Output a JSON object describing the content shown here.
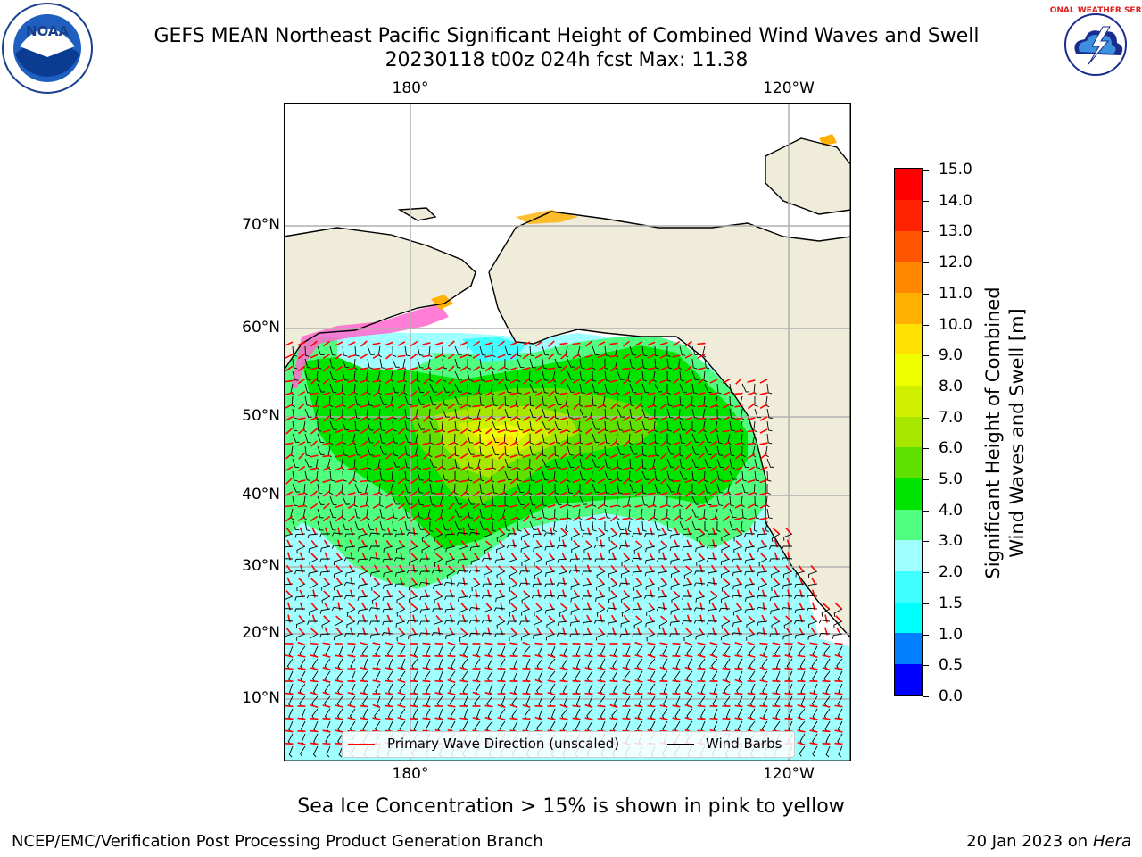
{
  "title": {
    "line1": "GEFS MEAN Northeast Pacific Significant Height of Combined Wind Waves and Swell",
    "line2": "20230118 t00z 024h fcst   Max: 11.38"
  },
  "logos": {
    "left": {
      "icon": "noaa-logo-icon",
      "text": "NOAA"
    },
    "right": {
      "icon": "nws-logo-icon",
      "text": "NATIONAL WEATHER SERVICE"
    }
  },
  "axes": {
    "lon_top": [
      "180°",
      "120°W"
    ],
    "lon_bottom": [
      "180°",
      "120°W"
    ],
    "lat": [
      "70°N",
      "60°N",
      "50°N",
      "40°N",
      "30°N",
      "20°N",
      "10°N"
    ]
  },
  "legend": {
    "wave_direction": "Primary Wave Direction (unscaled)",
    "wind_barbs": "Wind Barbs",
    "wave_color": "#ff0000",
    "barb_color": "#000000"
  },
  "colorbar": {
    "title_line1": "Significant Height of Combined",
    "title_line2": "Wind Waves and Swell [m]",
    "ticks": [
      "0.0",
      "0.5",
      "1.0",
      "1.5",
      "2.0",
      "3.0",
      "4.0",
      "5.0",
      "6.0",
      "7.0",
      "8.0",
      "9.0",
      "10.0",
      "11.0",
      "12.0",
      "13.0",
      "14.0",
      "15.0"
    ],
    "colors": [
      "#0000ff",
      "#0080ff",
      "#00ffff",
      "#40ffff",
      "#a0ffff",
      "#50ff80",
      "#00e400",
      "#60e000",
      "#a8e800",
      "#d0f000",
      "#f0ff00",
      "#ffe000",
      "#ffb000",
      "#ff8800",
      "#ff5500",
      "#ff2200",
      "#ff0000"
    ]
  },
  "map": {
    "land_color": "#efedd9",
    "max_value": 11.38
  },
  "note": "Sea Ice Concentration > 15% is shown in pink to yellow",
  "footer": {
    "left": "NCEP/EMC/Verification Post Processing Product Generation Branch",
    "date": "20 Jan 2023 on ",
    "machine": "Hera"
  }
}
